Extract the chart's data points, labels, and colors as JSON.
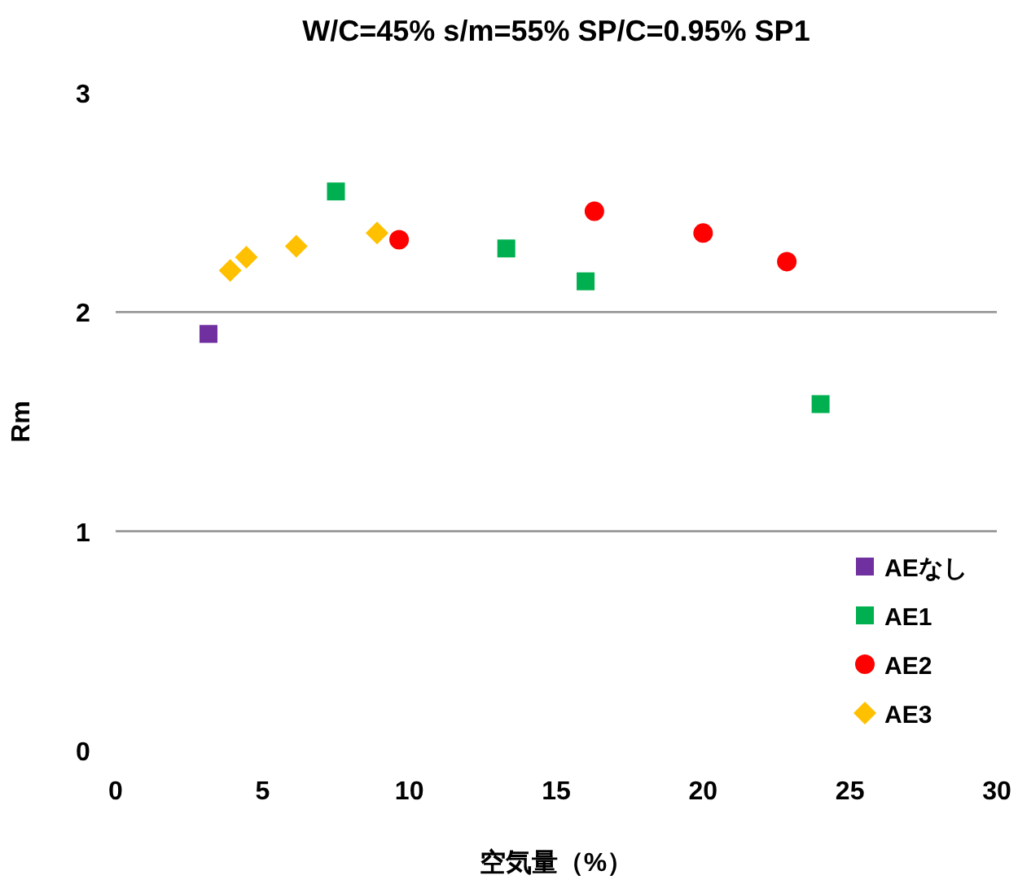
{
  "chart_data": {
    "type": "scatter",
    "title": "W/C=45% s/m=55% SP/C=0.95% SP1",
    "xlabel": "空気量（%）",
    "ylabel": "Rm",
    "xlim": [
      0,
      30
    ],
    "xticks": [
      0,
      5,
      10,
      15,
      20,
      25,
      30
    ],
    "ylim": [
      0,
      3
    ],
    "yticks": [
      0,
      1,
      2,
      3
    ],
    "grid": "y",
    "legend": "bottom right",
    "series": [
      {
        "name": "AEなし",
        "color": "#7030a0",
        "marker": "square",
        "x": [
          3.16
        ],
        "values": [
          1.9
        ]
      },
      {
        "name": "AE1",
        "color": "#00b050",
        "marker": "square",
        "x": [
          7.5,
          13.3,
          16.0,
          24.0
        ],
        "values": [
          2.55,
          2.29,
          2.14,
          1.58
        ]
      },
      {
        "name": "AE2",
        "color": "#ff0000",
        "marker": "circle",
        "x": [
          9.65,
          16.3,
          20.0,
          22.85
        ],
        "values": [
          2.33,
          2.46,
          2.36,
          2.23
        ]
      },
      {
        "name": "AE3",
        "color": "#ffc000",
        "marker": "diamond",
        "x": [
          3.9,
          4.45,
          6.15,
          8.9
        ],
        "values": [
          2.19,
          2.25,
          2.3,
          2.36
        ]
      }
    ]
  }
}
